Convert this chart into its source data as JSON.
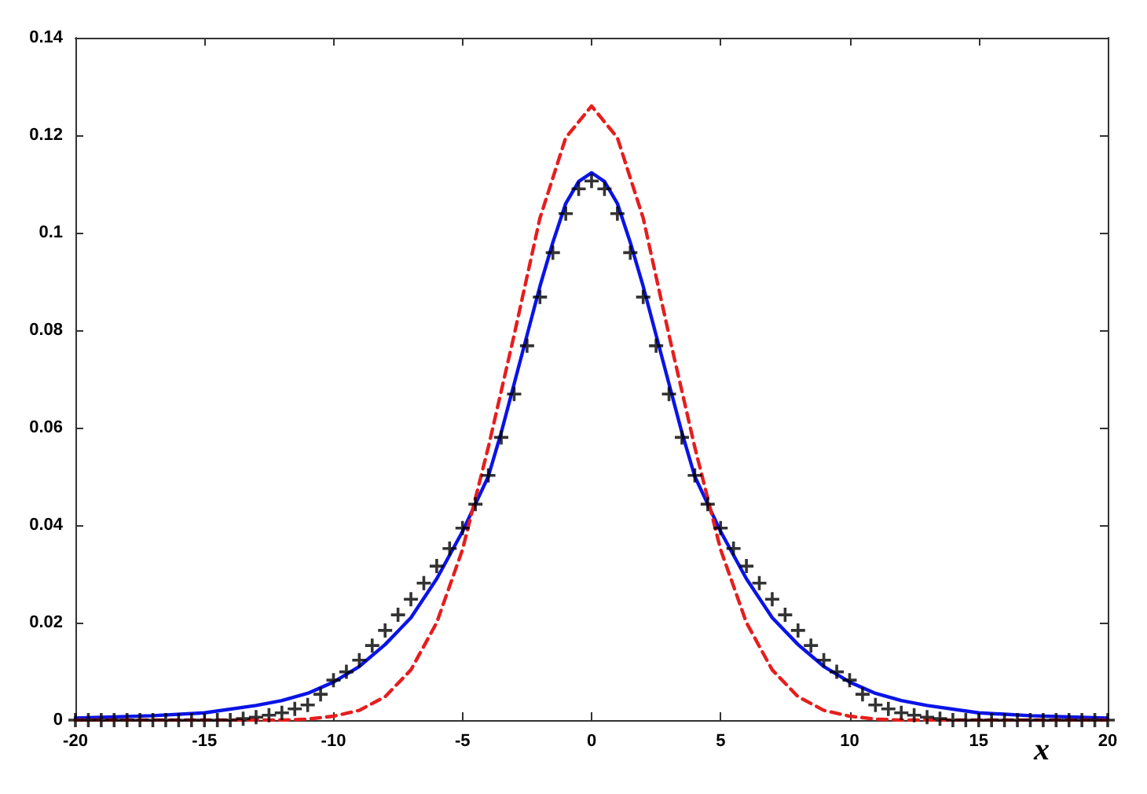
{
  "chart_data": {
    "type": "line",
    "xlabel": "x",
    "xlim": [
      -20,
      20
    ],
    "xticks": [
      -20,
      -15,
      -10,
      -5,
      0,
      5,
      10,
      15,
      20
    ],
    "ylim": [
      0,
      0.14
    ],
    "yticks": [
      0,
      0.02,
      0.04,
      0.06,
      0.08,
      0.1,
      0.12,
      0.14
    ],
    "grid": false,
    "series": [
      {
        "type": "scatter",
        "marker": "cross",
        "color": "#000000",
        "x": [
          -20,
          -19.5,
          -19,
          -18.5,
          -18,
          -17.5,
          -17,
          -16.5,
          -16,
          -15.5,
          -15,
          -14.5,
          -14,
          -13.5,
          -13,
          -12.5,
          -12,
          -11.5,
          -11,
          -10.5,
          -10,
          -9.5,
          -9,
          -8.5,
          -8,
          -7.5,
          -7,
          -6.5,
          -6,
          -5.5,
          -5,
          -4.5,
          -4,
          -3.5,
          -3,
          -2.5,
          -2,
          -1.5,
          -1,
          -0.5,
          0,
          0.5,
          1,
          1.5,
          2,
          2.5,
          3,
          3.5,
          4,
          4.5,
          5,
          5.5,
          6,
          6.5,
          7,
          7.5,
          8,
          8.5,
          9,
          9.5,
          10,
          10.5,
          11,
          11.5,
          12,
          12.5,
          13,
          13.5,
          14,
          14.5,
          15,
          15.5,
          16,
          16.5,
          17,
          17.5,
          18,
          18.5,
          19,
          19.5,
          20
        ],
        "values": [
          0,
          0,
          0,
          0,
          0,
          0,
          0,
          0,
          0,
          0,
          0,
          0,
          0,
          0.0003,
          0.0006,
          0.001,
          0.0015,
          0.0023,
          0.0031,
          0.0053,
          0.0082,
          0.0099,
          0.0123,
          0.0153,
          0.0184,
          0.0216,
          0.0248,
          0.0281,
          0.0316,
          0.0352,
          0.0394,
          0.0443,
          0.0502,
          0.058,
          0.0669,
          0.0768,
          0.0868,
          0.0959,
          0.1039,
          0.109,
          0.1106,
          0.109,
          0.1039,
          0.0959,
          0.0868,
          0.0768,
          0.0669,
          0.058,
          0.0502,
          0.0443,
          0.0394,
          0.0352,
          0.0316,
          0.0281,
          0.0248,
          0.0216,
          0.0184,
          0.0153,
          0.0123,
          0.0099,
          0.0082,
          0.0053,
          0.0031,
          0.0023,
          0.0015,
          0.001,
          0.0006,
          0.0003,
          0,
          0,
          0,
          0,
          0,
          0,
          0,
          0,
          0,
          0,
          0,
          0,
          0
        ]
      },
      {
        "line_style": "solid",
        "color": "#0a14e6",
        "x": [
          -20,
          -17,
          -15,
          -13,
          -12,
          -11,
          -10,
          -9,
          -8,
          -7,
          -6,
          -5,
          -4,
          -3.5,
          -3,
          -2.5,
          -2,
          -1.5,
          -1,
          -0.5,
          0,
          0.5,
          1,
          1.5,
          2,
          2.5,
          3,
          3.5,
          4,
          5,
          6,
          7,
          8,
          9,
          10,
          11,
          12,
          13,
          15,
          17,
          20
        ],
        "values": [
          0.0004,
          0.0009,
          0.0015,
          0.003,
          0.004,
          0.0055,
          0.0078,
          0.011,
          0.0155,
          0.021,
          0.029,
          0.0387,
          0.05,
          0.059,
          0.069,
          0.079,
          0.089,
          0.098,
          0.106,
          0.1105,
          0.1123,
          0.1105,
          0.106,
          0.098,
          0.089,
          0.079,
          0.069,
          0.059,
          0.05,
          0.0387,
          0.029,
          0.021,
          0.0155,
          0.011,
          0.0078,
          0.0055,
          0.004,
          0.003,
          0.0015,
          0.0009,
          0.0004
        ]
      },
      {
        "line_style": "dashed",
        "color": "#e61e1e",
        "x": [
          -20,
          -12,
          -11,
          -10,
          -9,
          -8,
          -7,
          -6,
          -5,
          -4,
          -3,
          -2,
          -1,
          0,
          1,
          2,
          3,
          4,
          5,
          6,
          7,
          8,
          9,
          10,
          11,
          12,
          20
        ],
        "values": [
          0,
          0,
          0.0002,
          0.0008,
          0.002,
          0.0048,
          0.0103,
          0.02,
          0.035,
          0.056,
          0.079,
          0.103,
          0.1195,
          0.126,
          0.1195,
          0.103,
          0.079,
          0.056,
          0.035,
          0.02,
          0.0103,
          0.0048,
          0.002,
          0.0008,
          0.0002,
          0,
          0
        ]
      }
    ]
  }
}
